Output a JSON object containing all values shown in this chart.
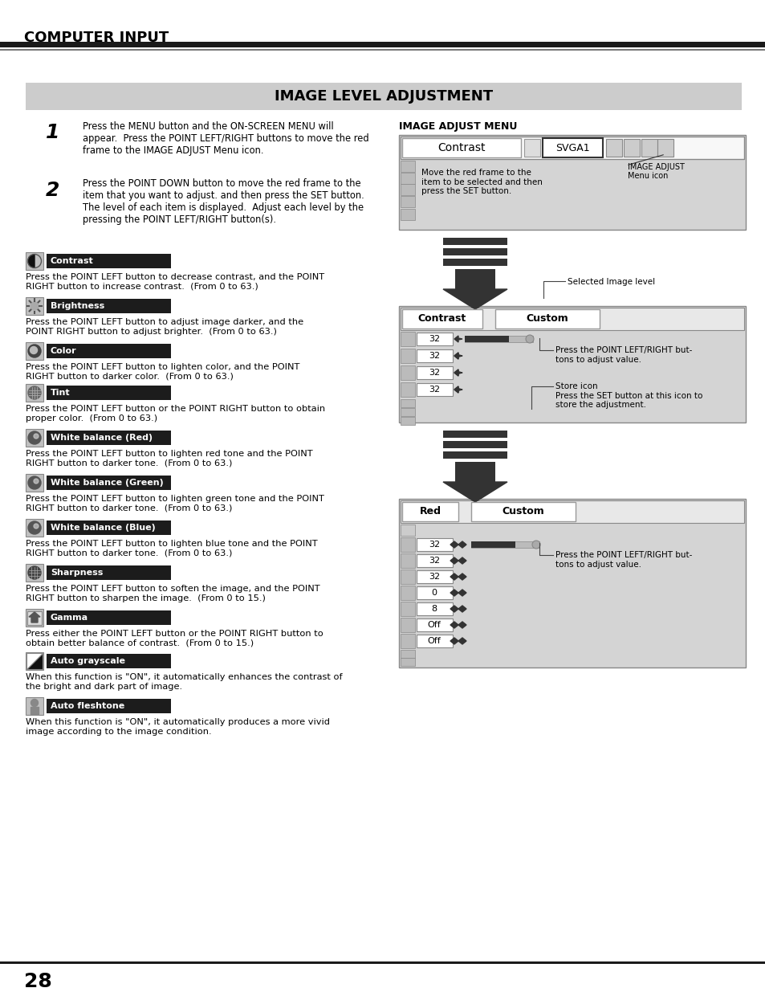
{
  "page_bg": "#ffffff",
  "header_text": "COMPUTER INPUT",
  "section_title": "IMAGE LEVEL ADJUSTMENT",
  "right_panel_title": "IMAGE ADJUST MENU",
  "items": [
    {
      "icon_type": "contrast",
      "label": "Contrast",
      "desc": "Press the POINT LEFT button to decrease contrast, and the POINT\nRIGHT button to increase contrast.  (From 0 to 63.)"
    },
    {
      "icon_type": "brightness",
      "label": "Brightness",
      "desc": "Press the POINT LEFT button to adjust image darker, and the\nPOINT RIGHT button to adjust brighter.  (From 0 to 63.)"
    },
    {
      "icon_type": "color",
      "label": "Color",
      "desc": "Press the POINT LEFT button to lighten color, and the POINT\nRIGHT button to darker color.  (From 0 to 63.)"
    },
    {
      "icon_type": "tint",
      "label": "Tint",
      "desc": "Press the POINT LEFT button or the POINT RIGHT button to obtain\nproper color.  (From 0 to 63.)"
    },
    {
      "icon_type": "wb_red",
      "label": "White balance (Red)",
      "desc": "Press the POINT LEFT button to lighten red tone and the POINT\nRIGHT button to darker tone.  (From 0 to 63.)"
    },
    {
      "icon_type": "wb_green",
      "label": "White balance (Green)",
      "desc": "Press the POINT LEFT button to lighten green tone and the POINT\nRIGHT button to darker tone.  (From 0 to 63.)"
    },
    {
      "icon_type": "wb_blue",
      "label": "White balance (Blue)",
      "desc": "Press the POINT LEFT button to lighten blue tone and the POINT\nRIGHT button to darker tone.  (From 0 to 63.)"
    },
    {
      "icon_type": "sharpness",
      "label": "Sharpness",
      "desc": "Press the POINT LEFT button to soften the image, and the POINT\nRIGHT button to sharpen the image.  (From 0 to 15.)"
    },
    {
      "icon_type": "gamma",
      "label": "Gamma",
      "desc": "Press either the POINT LEFT button or the POINT RIGHT button to\nobtain better balance of contrast.  (From 0 to 15.)"
    },
    {
      "icon_type": "autogray",
      "label": "Auto grayscale",
      "desc": "When this function is \"ON\", it automatically enhances the contrast of\nthe bright and dark part of image."
    },
    {
      "icon_type": "autoflesh",
      "label": "Auto fleshtone",
      "desc": "When this function is \"ON\", it automatically produces a more vivid\nimage according to the image condition."
    }
  ],
  "page_number": "28",
  "step1_text": "Press the MENU button and the ON-SCREEN MENU will\nappear.  Press the POINT LEFT/RIGHT buttons to move the red\nframe to the IMAGE ADJUST Menu icon.",
  "step2_text": "Press the POINT DOWN button to move the red frame to the\nitem that you want to adjust. and then press the SET button.\nThe level of each item is displayed.  Adjust each level by the\npressing the POINT LEFT/RIGHT button(s)."
}
